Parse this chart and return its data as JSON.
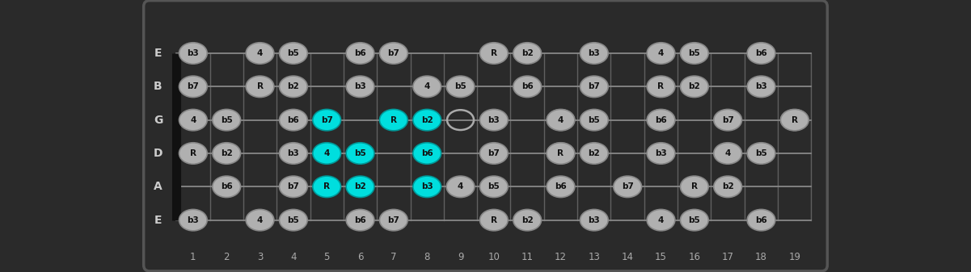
{
  "bg_color": "#2a2a2a",
  "string_labels": [
    "E",
    "B",
    "G",
    "D",
    "A",
    "E"
  ],
  "fret_label_color": "#aaaaaa",
  "string_label_color": "#cccccc",
  "note_gray_face": "#b0b0b0",
  "note_gray_edge": "#888888",
  "note_cyan_face": "#00dede",
  "note_cyan_edge": "#009999",
  "note_text_color": "#111111",
  "open_circle_color": "#aaaaaa",
  "fret_line_color": "#606060",
  "string_line_color": "#888888",
  "nut_color": "#111111",
  "n_frets": 19,
  "notes": {
    "0": {
      "1": "b3",
      "3": "4",
      "4": "b5",
      "6": "b6",
      "7": "b7",
      "10": "R",
      "11": "b2",
      "13": "b3",
      "15": "4",
      "16": "b5",
      "18": "b6"
    },
    "1": {
      "1": "b7",
      "3": "R",
      "4": "b2",
      "6": "b3",
      "8": "4",
      "9": "b5",
      "11": "b6",
      "13": "b7",
      "15": "R",
      "16": "b2",
      "18": "b3"
    },
    "2": {
      "1": "4",
      "2": "b5",
      "4": "b6",
      "5": "b7",
      "7": "R",
      "8": "b2",
      "10": "b3",
      "12": "4",
      "13": "b5",
      "15": "b6",
      "17": "b7",
      "19": "R"
    },
    "3": {
      "1": "R",
      "2": "b2",
      "4": "b3",
      "5": "4",
      "6": "b5",
      "8": "b6",
      "10": "b7",
      "12": "R",
      "13": "b2",
      "15": "b3",
      "17": "4",
      "18": "b5"
    },
    "4": {
      "2": "b6",
      "4": "b7",
      "5": "R",
      "6": "b2",
      "8": "b3",
      "9": "4",
      "10": "b5",
      "12": "b6",
      "14": "b7",
      "16": "R",
      "17": "b2"
    },
    "5": {
      "1": "b3",
      "3": "4",
      "4": "b5",
      "6": "b6",
      "7": "b7",
      "10": "R",
      "11": "b2",
      "13": "b3",
      "15": "4",
      "16": "b5",
      "18": "b6"
    }
  },
  "open_circles": {
    "2": [
      9,
      12,
      15,
      19
    ],
    "3": [
      12
    ]
  },
  "cyan_notes": {
    "2": [
      5,
      7,
      8
    ],
    "3": [
      5,
      6,
      8
    ],
    "4": [
      5,
      6,
      8
    ]
  }
}
